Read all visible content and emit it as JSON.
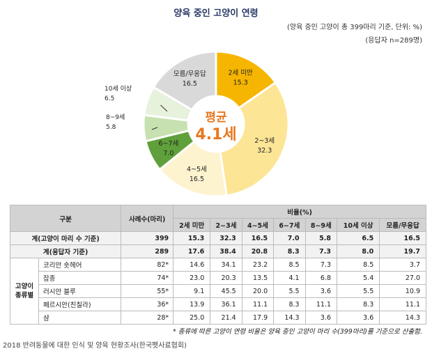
{
  "title": "양육 중인 고양이 연령",
  "subtitle": "(양육 중인 고양이 총 399마리 기준, 단위: %)",
  "respondents": "(응답자 n=289명)",
  "center": {
    "line1": "평균",
    "line2": "4.1세"
  },
  "chart_data": {
    "type": "pie",
    "title": "양육 중인 고양이 연령",
    "unit": "%",
    "slices": [
      {
        "label": "2세 미만",
        "value": "15.3",
        "color": "#f6b500"
      },
      {
        "label": "2~3세",
        "value": "32.3",
        "color": "#fde596"
      },
      {
        "label": "4~5세",
        "value": "16.5",
        "color": "#fef3cf"
      },
      {
        "label": "6~7세",
        "value": "7.0",
        "color": "#5fa03a"
      },
      {
        "label": "8~9세",
        "value": "5.8",
        "color": "#c7e1b0"
      },
      {
        "label": "10세 이상",
        "value": "6.5",
        "color": "#e6f2dc"
      },
      {
        "label": "모름/무응답",
        "value": "16.5",
        "color": "#d9d9d9"
      }
    ]
  },
  "table": {
    "header_group": "구분",
    "header_count": "사례수(마리)",
    "header_ratio": "비율(%)",
    "columns": [
      "2세 미만",
      "2~3세",
      "4~5세",
      "6~7세",
      "8~9세",
      "10세 이상",
      "모름/무응답"
    ],
    "total_rows": [
      {
        "label": "계(고양이 마리 수 기준)",
        "count": "399",
        "values": [
          "15.3",
          "32.3",
          "16.5",
          "7.0",
          "5.8",
          "6.5",
          "16.5"
        ]
      },
      {
        "label": "계(응답자 기준)",
        "count": "289",
        "values": [
          "17.6",
          "38.4",
          "20.8",
          "8.3",
          "7.3",
          "8.0",
          "19.7"
        ]
      }
    ],
    "group_label": "고양이 종류별",
    "breed_rows": [
      {
        "label": "코리안 숏헤어",
        "count": "82*",
        "values": [
          "14.6",
          "34.1",
          "23.2",
          "8.5",
          "7.3",
          "8.5",
          "3.7"
        ]
      },
      {
        "label": "잡종",
        "count": "74*",
        "values": [
          "23.0",
          "20.3",
          "13.5",
          "4.1",
          "6.8",
          "5.4",
          "27.0"
        ]
      },
      {
        "label": "러시안 블루",
        "count": "55*",
        "values": [
          "9.1",
          "45.5",
          "20.0",
          "5.5",
          "3.6",
          "5.5",
          "10.9"
        ]
      },
      {
        "label": "페르시안(친칠라)",
        "count": "36*",
        "values": [
          "13.9",
          "36.1",
          "11.1",
          "8.3",
          "11.1",
          "8.3",
          "11.1"
        ]
      },
      {
        "label": "샴",
        "count": "28*",
        "values": [
          "25.0",
          "21.4",
          "17.9",
          "14.3",
          "3.6",
          "3.6",
          "14.3"
        ]
      }
    ]
  },
  "note": "* 종류에 따른 고양이 연령 비율은 양육 중인 고양이 마리 수(399마리)를 기준으로 산출함.",
  "source": "2018 반려동물에 대한 인식 및 양육 현황조사(한국펫사료협회)"
}
